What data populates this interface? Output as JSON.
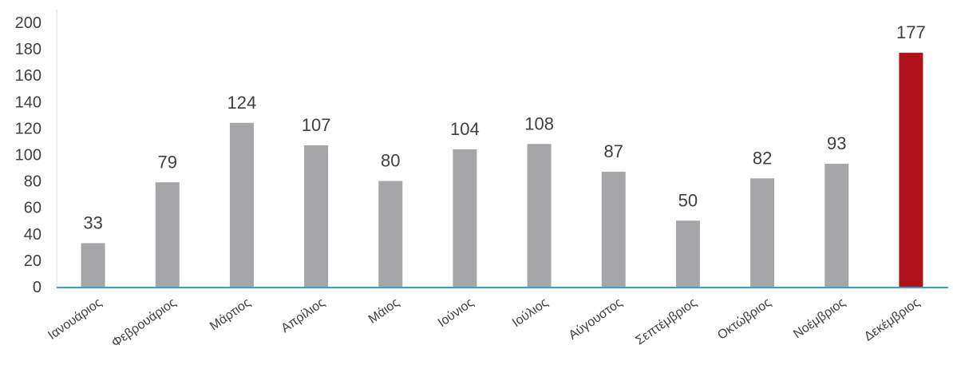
{
  "chart_data": {
    "type": "bar",
    "categories": [
      "Ιανουάριος",
      "Φεβρουάριος",
      "Μάρτιος",
      "Απρίλιος",
      "Μάιος",
      "Ιούνιος",
      "Ιούλιος",
      "Αύγουστος",
      "Σεπτέμβριος",
      "Οκτώβριος",
      "Νοέμβριος",
      "Δεκέμβριος"
    ],
    "values": [
      33,
      79,
      124,
      107,
      80,
      104,
      108,
      87,
      50,
      82,
      93,
      177
    ],
    "ylim": [
      0,
      200
    ],
    "yticks": [
      0,
      20,
      40,
      60,
      80,
      100,
      120,
      140,
      160,
      180,
      200
    ],
    "highlight_index": 11,
    "colors": {
      "bar": "#a6a6a9",
      "highlight": "#b0121b",
      "baseline": "#2aa7dc"
    },
    "grid": false,
    "legend": "none"
  }
}
